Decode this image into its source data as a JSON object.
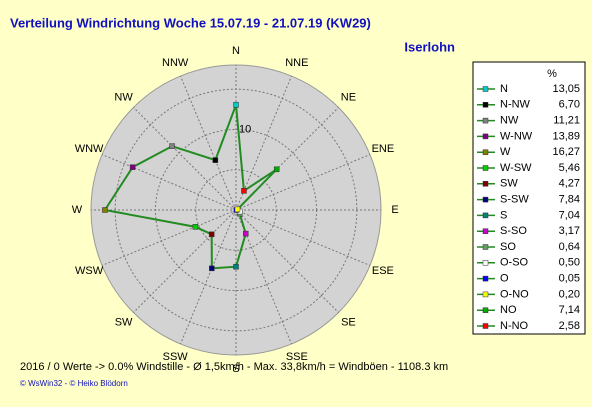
{
  "chart_data": {
    "type": "radar",
    "title": "Verteilung Windrichtung   Woche 15.07.19 - 21.07.19 (KW29)",
    "location": "Iserlohn",
    "direction_labels": [
      "N",
      "NNE",
      "NE",
      "ENE",
      "E",
      "ESE",
      "SE",
      "SSE",
      "S",
      "SSW",
      "SW",
      "WSW",
      "W",
      "WNW",
      "NW",
      "NNW"
    ],
    "legend_header": "%",
    "line_color": "#228b22",
    "rlim": [
      0,
      18
    ],
    "rticks": [
      10
    ],
    "rings": [
      5,
      10,
      15
    ],
    "series": [
      {
        "name": "N",
        "color": "#00cccc",
        "value": 13.05,
        "value_label": "13,05"
      },
      {
        "name": "N-NW",
        "color": "#000000",
        "value": 6.7,
        "value_label": "6,70"
      },
      {
        "name": "NW",
        "color": "#808080",
        "value": 11.21,
        "value_label": "11,21"
      },
      {
        "name": "W-NW",
        "color": "#800080",
        "value": 13.89,
        "value_label": "13,89"
      },
      {
        "name": "W",
        "color": "#808000",
        "value": 16.27,
        "value_label": "16,27"
      },
      {
        "name": "W-SW",
        "color": "#00cc00",
        "value": 5.46,
        "value_label": "5,46"
      },
      {
        "name": "SW",
        "color": "#800000",
        "value": 4.27,
        "value_label": "4,27"
      },
      {
        "name": "S-SW",
        "color": "#000080",
        "value": 7.84,
        "value_label": "7,84"
      },
      {
        "name": "S",
        "color": "#008080",
        "value": 7.04,
        "value_label": "7,04"
      },
      {
        "name": "S-SO",
        "color": "#cc00cc",
        "value": 3.17,
        "value_label": "3,17"
      },
      {
        "name": "SO",
        "color": "#669966",
        "value": 0.64,
        "value_label": "0,64"
      },
      {
        "name": "O-SO",
        "color": "#ffffff",
        "value": 0.5,
        "value_label": "0,50"
      },
      {
        "name": "O",
        "color": "#0000ff",
        "value": 0.05,
        "value_label": "0,05"
      },
      {
        "name": "O-NO",
        "color": "#ffff00",
        "value": 0.2,
        "value_label": "0,20"
      },
      {
        "name": "NO",
        "color": "#00aa00",
        "value": 7.14,
        "value_label": "7,14"
      },
      {
        "name": "N-NO",
        "color": "#ff0000",
        "value": 2.58,
        "value_label": "2,58"
      }
    ],
    "footer": "2016 / 0 Werte  -> 0.0% Windstille   -   Ø 1,5km/h   -  Max. 33,8km/h = Windböen   -   1108.3 km",
    "credit": "© WsWin32  - © Heiko Blödorn"
  }
}
